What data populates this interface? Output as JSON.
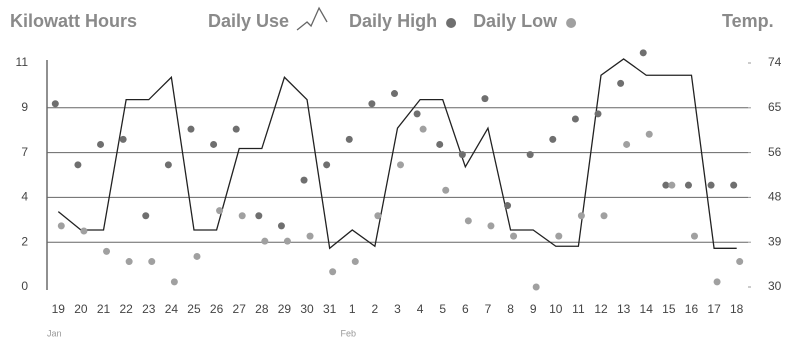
{
  "chart_data": {
    "type": "line_scatter",
    "legend_titles": {
      "left": "Kilowatt Hours",
      "right": "Temp."
    },
    "categories": [
      "19",
      "20",
      "21",
      "22",
      "23",
      "24",
      "25",
      "26",
      "27",
      "28",
      "29",
      "30",
      "31",
      "1",
      "2",
      "3",
      "4",
      "5",
      "6",
      "7",
      "8",
      "9",
      "10",
      "11",
      "12",
      "13",
      "14",
      "15",
      "16",
      "17",
      "18"
    ],
    "month_labels": [
      {
        "index": 0,
        "label": "Jan"
      },
      {
        "index": 13,
        "label": "Feb"
      }
    ],
    "series": [
      {
        "name": "Daily Use",
        "kind": "line",
        "color": "#222222",
        "values": [
          3.7,
          2.8,
          2.8,
          9.2,
          9.2,
          10.3,
          2.8,
          2.8,
          6.8,
          6.8,
          10.3,
          9.2,
          1.9,
          2.8,
          2.0,
          7.8,
          9.2,
          9.2,
          5.9,
          7.8,
          2.8,
          2.8,
          2.0,
          2.0,
          10.4,
          11.2,
          10.4,
          10.4,
          10.4,
          1.9,
          1.9
        ]
      },
      {
        "name": "Daily High",
        "kind": "scatter",
        "axis": "y2",
        "color": "#6f6f6f",
        "values": [
          66,
          54,
          58,
          59,
          44,
          54,
          61,
          58,
          61,
          44,
          42,
          51,
          54,
          59,
          66,
          68,
          64,
          58,
          56,
          67,
          46,
          56,
          59,
          63,
          64,
          70,
          76,
          50,
          50,
          50,
          50
        ]
      },
      {
        "name": "Daily Low",
        "kind": "scatter",
        "axis": "y2",
        "color": "#a0a0a0",
        "values": [
          42,
          41,
          37,
          35,
          35,
          31,
          36,
          45,
          44,
          39,
          39,
          40,
          33,
          35,
          44,
          54,
          61,
          49,
          43,
          42,
          40,
          30,
          40,
          44,
          44,
          58,
          60,
          50,
          40,
          31,
          35
        ]
      }
    ],
    "ylim": [
      0,
      11
    ],
    "yticks": [
      0,
      {
        "value": 2.2,
        "label": "2"
      },
      {
        "value": 4.4,
        "label": "4"
      },
      {
        "value": 6.6,
        "label": "7"
      },
      {
        "value": 8.8,
        "label": "9"
      },
      11
    ],
    "y2lim": [
      30,
      74
    ],
    "y2ticks": [
      30,
      {
        "value": 38.8,
        "label": "39"
      },
      {
        "value": 47.6,
        "label": "48"
      },
      {
        "value": 56.4,
        "label": "56"
      },
      {
        "value": 65.2,
        "label": "65"
      },
      74
    ],
    "grid": true
  }
}
